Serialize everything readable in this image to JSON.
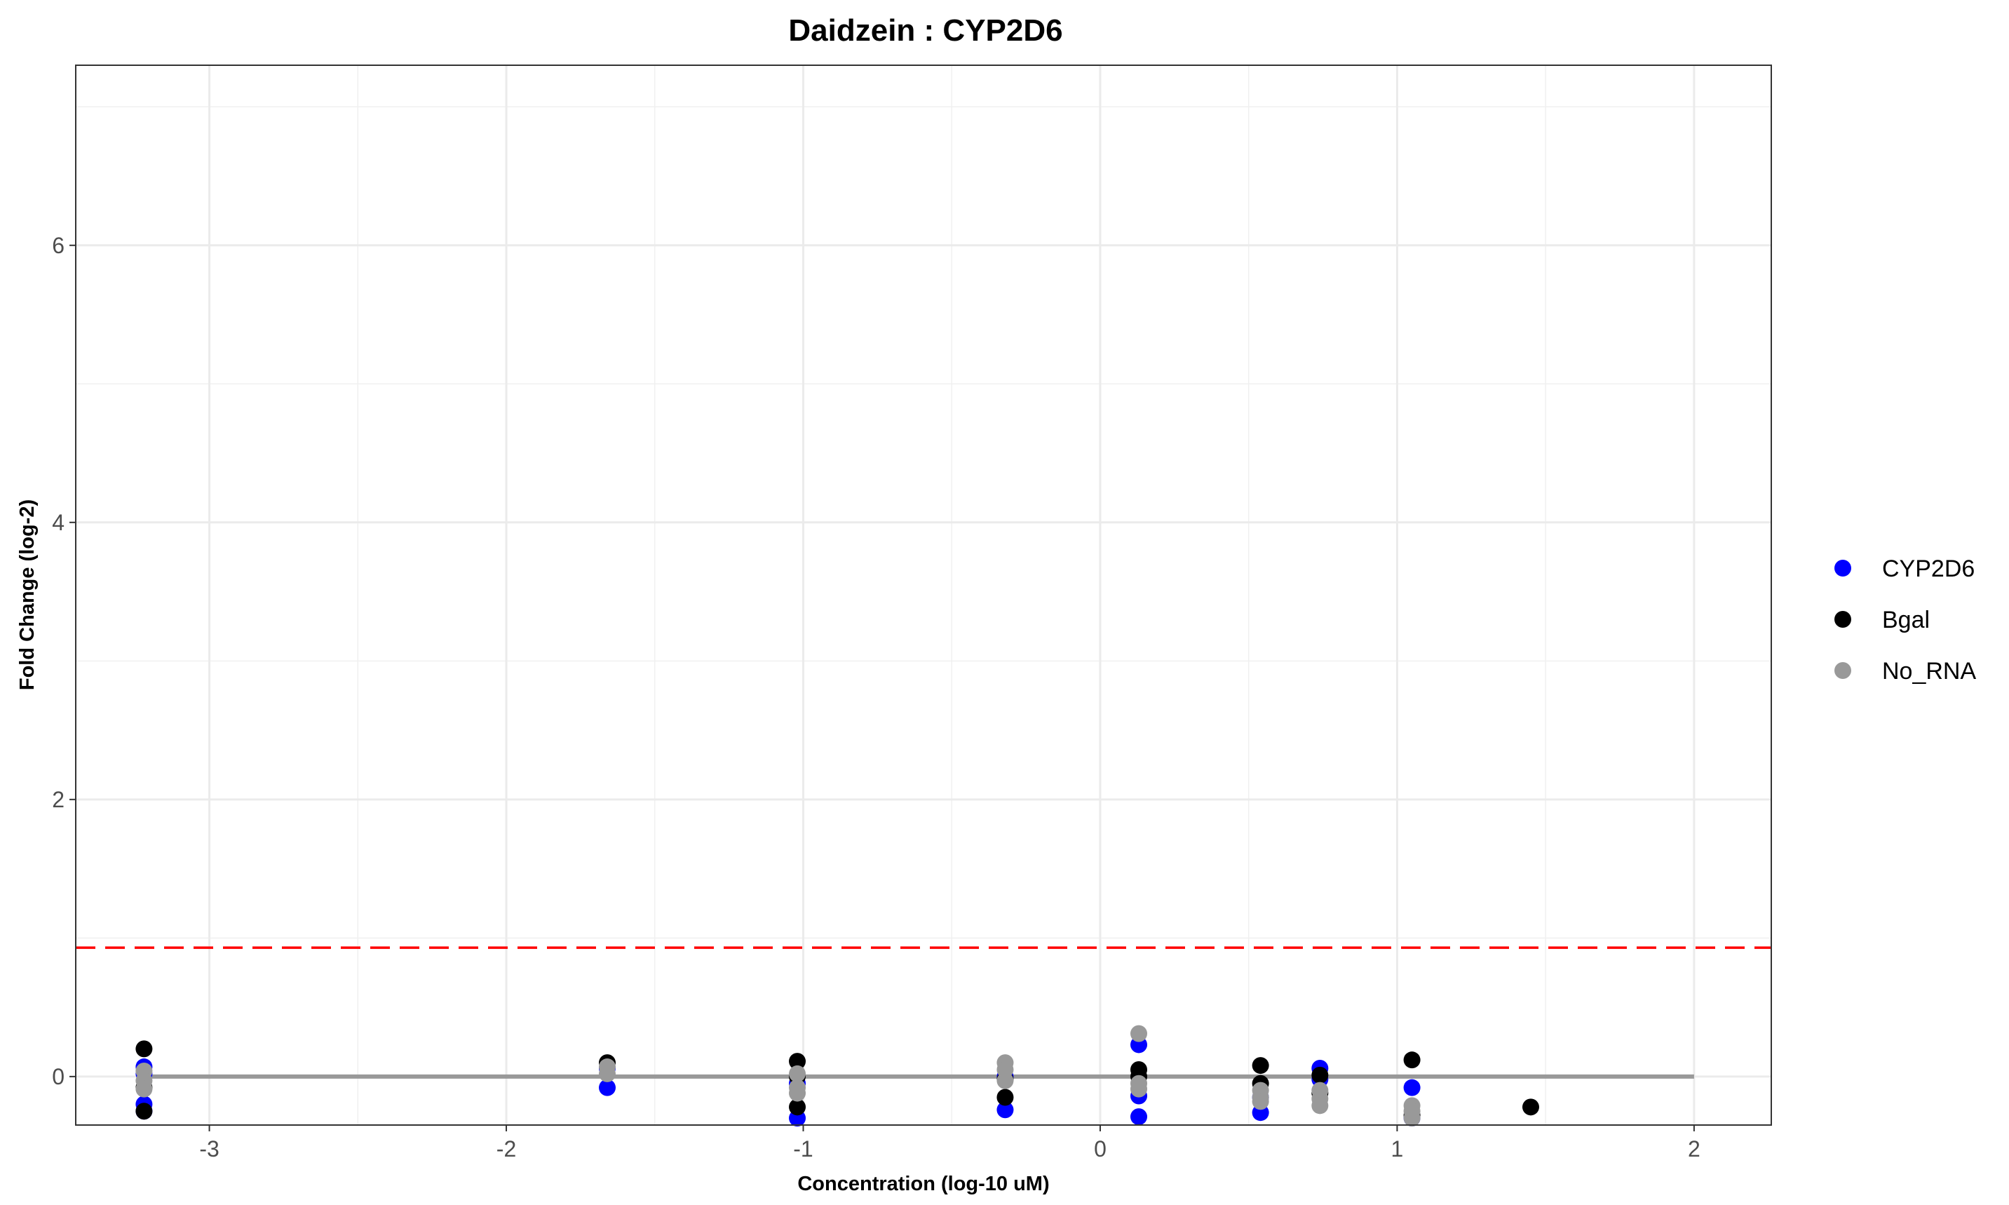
{
  "chart_data": {
    "type": "scatter",
    "title": "Daidzein : CYP2D6",
    "xlabel": "Concentration (log-10 uM)",
    "ylabel": "Fold Change (log-2)",
    "xlim": [
      -3.45,
      2.26
    ],
    "ylim": [
      -0.35,
      7.3
    ],
    "x_ticks": [
      -3,
      -2,
      -1,
      0,
      1,
      2
    ],
    "y_ticks": [
      0,
      2,
      4,
      6
    ],
    "grid": true,
    "legend_position": "right",
    "threshold": {
      "value": 0.93,
      "color": "#ff0000",
      "style": "dashed"
    },
    "baseline": {
      "value": 0,
      "x_range": [
        -3.22,
        2.0
      ],
      "color": "#999999"
    },
    "series": [
      {
        "name": "CYP2D6",
        "color": "#0000ff",
        "x": [
          -3.22,
          -3.22,
          -3.22,
          -3.22,
          -1.66,
          -1.66,
          -1.02,
          -1.02,
          -0.32,
          -0.32,
          0.13,
          0.13,
          0.13,
          0.54,
          0.54,
          0.74,
          0.74,
          1.05,
          1.05
        ],
        "y": [
          0.07,
          -0.2,
          -0.25,
          0.02,
          0.06,
          -0.08,
          -0.3,
          -0.05,
          -0.24,
          0.0,
          0.23,
          -0.14,
          -0.29,
          -0.26,
          -0.15,
          0.06,
          -0.02,
          -0.08,
          -0.3
        ]
      },
      {
        "name": "Bgal",
        "color": "#000000",
        "x": [
          -3.22,
          -3.22,
          -3.22,
          -1.66,
          -1.02,
          -1.02,
          -1.02,
          -0.32,
          -0.32,
          0.13,
          0.13,
          0.54,
          0.54,
          0.74,
          0.74,
          1.05,
          1.05,
          1.45
        ],
        "y": [
          0.2,
          -0.25,
          -0.08,
          0.1,
          0.11,
          -0.22,
          0.0,
          -0.15,
          -0.02,
          0.05,
          0.0,
          0.08,
          -0.05,
          0.01,
          -0.12,
          0.12,
          -0.28,
          -0.22
        ]
      },
      {
        "name": "No_RNA",
        "color": "#999999",
        "x": [
          -3.22,
          -3.22,
          -3.22,
          -1.66,
          -1.66,
          -1.02,
          -1.02,
          -1.02,
          -0.32,
          -0.32,
          -0.32,
          0.13,
          0.13,
          0.13,
          0.54,
          0.54,
          0.54,
          0.74,
          0.74,
          0.74,
          1.05,
          1.05,
          1.05
        ],
        "y": [
          0.04,
          -0.03,
          -0.09,
          0.07,
          0.02,
          0.02,
          -0.08,
          -0.12,
          0.1,
          0.05,
          -0.03,
          0.31,
          -0.05,
          -0.09,
          -0.1,
          -0.15,
          -0.18,
          -0.1,
          -0.16,
          -0.21,
          -0.21,
          -0.25,
          -0.3
        ]
      }
    ]
  }
}
